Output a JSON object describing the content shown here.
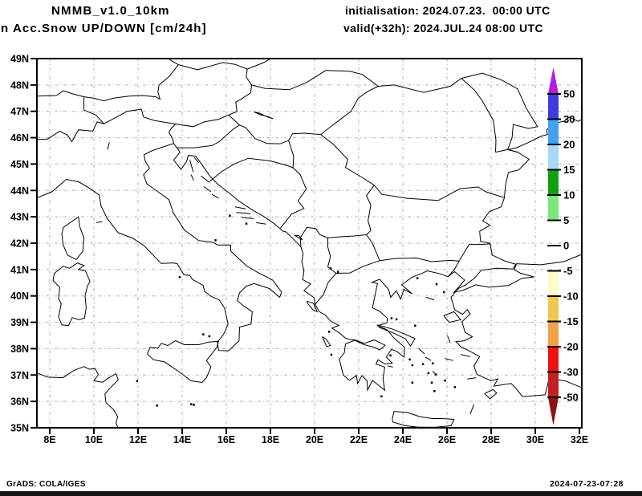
{
  "header": {
    "model_title": "NMMB_v1.0_10km",
    "product_title": "n Acc.Snow UP/DOWN [cm/24h]",
    "init_line": "initialisation: 2024.07.23.  00:00 UTC",
    "valid_line": "valid(+32h): 2024.JUL.24 08:00 UTC"
  },
  "footer": {
    "left": "GrADS: COLA/IGES",
    "right": "2024-07-23-07:28"
  },
  "map": {
    "lat_axis": {
      "labels": [
        "49N",
        "48N",
        "47N",
        "46N",
        "45N",
        "44N",
        "43N",
        "42N",
        "41N",
        "40N",
        "39N",
        "38N",
        "37N",
        "36N",
        "35N"
      ],
      "values": [
        49,
        48,
        47,
        46,
        45,
        44,
        43,
        42,
        41,
        40,
        39,
        38,
        37,
        36,
        35
      ]
    },
    "lon_axis": {
      "labels": [
        "8E",
        "10E",
        "12E",
        "14E",
        "16E",
        "18E",
        "20E",
        "22E",
        "24E",
        "26E",
        "28E",
        "30E",
        "32E"
      ],
      "values": [
        8,
        10,
        12,
        14,
        16,
        18,
        20,
        22,
        24,
        26,
        28,
        30,
        32
      ]
    },
    "gridline_color": "#b4b4b4",
    "coastline_color": "#000000",
    "frame_color": "#000000"
  },
  "colorbar": {
    "tick_labels": [
      "50",
      "30",
      "20",
      "15",
      "10",
      "5",
      "0",
      "-5",
      "-10",
      "-15",
      "-20",
      "-30",
      "-50"
    ],
    "colors_top_to_bottom": [
      "#b01ce0",
      "#3c3ce0",
      "#46a0f0",
      "#a8d8f8",
      "#10a010",
      "#78e878",
      "#ffffff",
      "#ffffff",
      "#fcfcc8",
      "#eec850",
      "#f2a24a",
      "#f01010",
      "#c42020",
      "#8a1414"
    ]
  }
}
